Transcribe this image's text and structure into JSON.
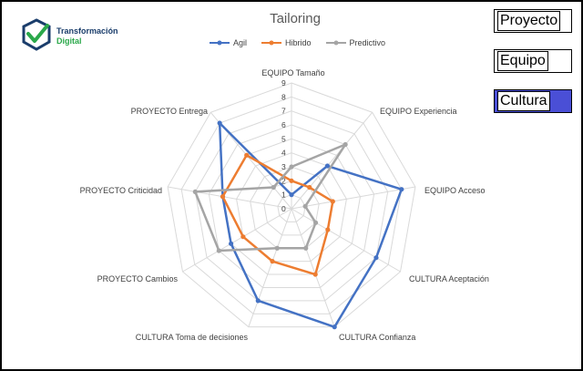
{
  "logo": {
    "line1": "Transformación",
    "line2": "Digital"
  },
  "buttons": [
    {
      "label": "Proyecto",
      "active": false
    },
    {
      "label": "Equipo",
      "active": false
    },
    {
      "label": "Cultura",
      "active": true
    }
  ],
  "colors": {
    "agil": "#4472c4",
    "hibrido": "#ed7d31",
    "predictivo": "#a5a5a5",
    "active_button": "#4a4fd6"
  },
  "chart_data": {
    "type": "radar",
    "title": "Tailoring",
    "legend_position": "top",
    "grid": true,
    "rlim": [
      0,
      9
    ],
    "ticks": [
      "0",
      "1",
      "2",
      "3",
      "4",
      "5",
      "6",
      "7",
      "8",
      "9"
    ],
    "categories": [
      "EQUIPO Tamaño",
      "EQUIPO Experiencia",
      "EQUIPO Acceso",
      "CULTURA Aceptación",
      "CULTURA Confianza",
      "CULTURA Toma de decisiones",
      "PROYECTO Cambios",
      "PROYECTO Criticidad",
      "PROYECTO Entrega"
    ],
    "series": [
      {
        "name": "Agil",
        "values": [
          1,
          4,
          8,
          7,
          9,
          7,
          5,
          5,
          8
        ]
      },
      {
        "name": "Hibrido",
        "values": [
          2,
          2,
          3,
          3,
          5,
          4,
          4,
          5,
          5
        ]
      },
      {
        "name": "Predictivo",
        "values": [
          3,
          6,
          1,
          2,
          3,
          3,
          6,
          7,
          2
        ]
      }
    ]
  }
}
